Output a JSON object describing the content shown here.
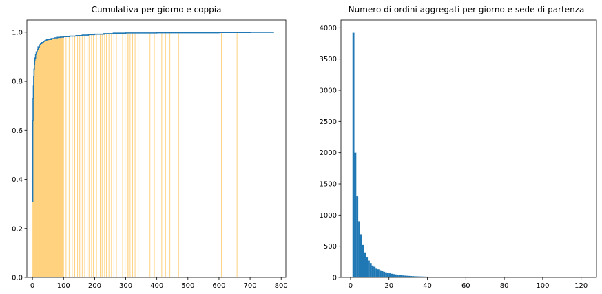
{
  "chart_data": [
    {
      "type": "area",
      "title": "Cumulativa per giorno e coppia",
      "xlabel": "",
      "ylabel": "",
      "xlim": [
        -18,
        815
      ],
      "ylim": [
        0,
        1.05
      ],
      "xticks": [
        0,
        100,
        200,
        300,
        400,
        500,
        600,
        700,
        800
      ],
      "yticks": [
        0.0,
        0.2,
        0.4,
        0.6,
        0.8,
        1.0
      ],
      "grid": false,
      "fill_color": "#ffd280",
      "line_color": "#1f77b4",
      "series": [
        {
          "x": [
            0,
            1,
            2,
            3,
            4,
            5,
            6,
            7,
            8,
            10,
            12,
            15,
            18,
            22,
            26,
            30,
            35,
            40,
            45,
            50,
            60,
            70,
            80,
            90,
            100,
            120,
            140,
            160,
            180,
            200,
            230,
            260,
            300,
            400,
            500,
            600,
            700,
            775
          ],
          "y": [
            0.31,
            0.64,
            0.73,
            0.78,
            0.82,
            0.85,
            0.87,
            0.885,
            0.895,
            0.91,
            0.92,
            0.93,
            0.94,
            0.948,
            0.954,
            0.958,
            0.963,
            0.966,
            0.969,
            0.971,
            0.974,
            0.977,
            0.979,
            0.98,
            0.982,
            0.984,
            0.986,
            0.988,
            0.99,
            0.992,
            0.994,
            0.996,
            0.997,
            0.998,
            0.998,
            0.999,
            0.9995,
            1.0
          ]
        }
      ],
      "extra_lines_x": [
        100,
        108,
        118,
        128,
        136,
        145,
        152,
        160,
        168,
        176,
        182,
        190,
        196,
        206,
        218,
        224,
        232,
        238,
        246,
        254,
        262,
        270,
        290,
        298,
        306,
        310,
        314,
        322,
        330,
        340,
        378,
        392,
        404,
        416,
        428,
        442,
        470,
        608,
        658
      ]
    },
    {
      "type": "bar",
      "title": "Numero di ordini aggregati per giorno e sede di partenza",
      "xlabel": "",
      "ylabel": "",
      "xlim": [
        -5,
        128
      ],
      "ylim": [
        0,
        4125
      ],
      "xticks": [
        0,
        20,
        40,
        60,
        80,
        100,
        120
      ],
      "yticks": [
        0,
        500,
        1000,
        1500,
        2000,
        2500,
        3000,
        3500,
        4000
      ],
      "grid": false,
      "bar_color": "#1f77b4",
      "bin_width": 1,
      "bin_start": 1,
      "values": [
        3920,
        2000,
        1300,
        900,
        690,
        520,
        400,
        330,
        270,
        230,
        190,
        170,
        150,
        130,
        115,
        100,
        90,
        80,
        72,
        65,
        58,
        52,
        47,
        42,
        38,
        34,
        31,
        28,
        26,
        24,
        22,
        20,
        18,
        17,
        16,
        15,
        14,
        13,
        12,
        11,
        11,
        10,
        10,
        9,
        9,
        8,
        8,
        8,
        7,
        7,
        7,
        6,
        6,
        6,
        6,
        5,
        5,
        5,
        5,
        5,
        4,
        4,
        4,
        4,
        4,
        4,
        3,
        3,
        3,
        3,
        3,
        3,
        3,
        3,
        3,
        2,
        2,
        2,
        2,
        2,
        2,
        2,
        2,
        2,
        2,
        2,
        2,
        2,
        2,
        2,
        1,
        1,
        1,
        1,
        1,
        1,
        1,
        1,
        1,
        1,
        1,
        1,
        1,
        1,
        1,
        1,
        1,
        1,
        1,
        1,
        1,
        1,
        1,
        1,
        1,
        1,
        1,
        1,
        1,
        1,
        1,
        1,
        1,
        1
      ]
    }
  ]
}
